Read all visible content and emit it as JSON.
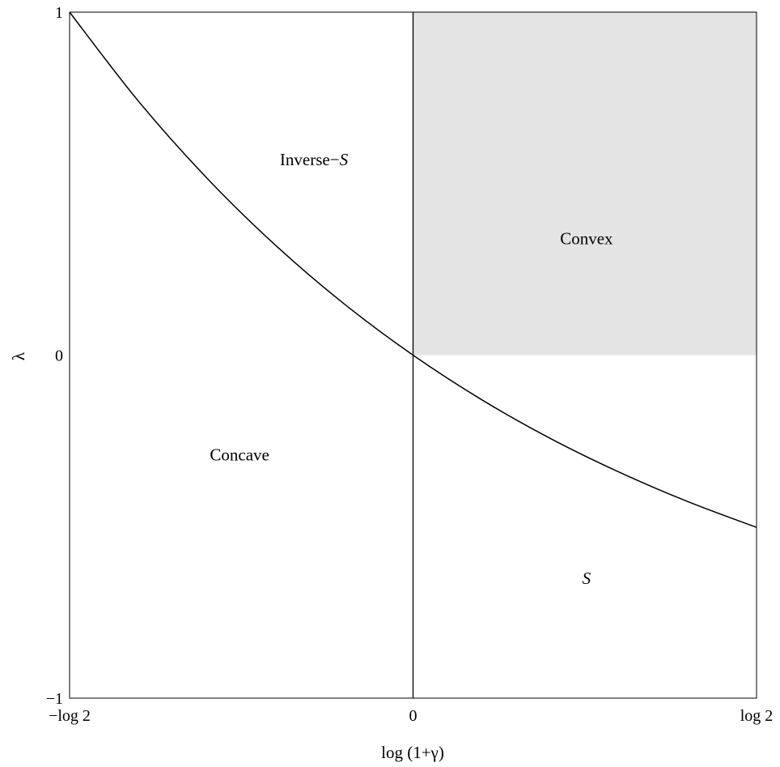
{
  "chart_data": {
    "type": "line",
    "title": "",
    "xlabel": "log (1+γ)",
    "ylabel": "λ",
    "xlim": [
      -0.6931,
      0.6931
    ],
    "ylim": [
      -1,
      1
    ],
    "x_ticks": [
      {
        "value": -0.6931,
        "label": "−log 2"
      },
      {
        "value": 0,
        "label": "0"
      },
      {
        "value": 0.6931,
        "label": "log 2"
      }
    ],
    "y_ticks": [
      {
        "value": -1,
        "label": "−1"
      },
      {
        "value": 0,
        "label": "0"
      },
      {
        "value": 1,
        "label": "1"
      }
    ],
    "grid": false,
    "series": [
      {
        "color": "#000000",
        "x": [
          -0.6931,
          -0.5545,
          -0.4159,
          -0.2773,
          -0.1386,
          0,
          0.1386,
          0.2773,
          0.4159,
          0.5545,
          0.6931
        ],
        "y": [
          1.0,
          0.741,
          0.516,
          0.32,
          0.149,
          0.0,
          -0.13,
          -0.243,
          -0.341,
          -0.427,
          -0.502
        ]
      }
    ],
    "vertical_line": {
      "x": 0,
      "y_range": [
        -1,
        1
      ],
      "color": "#000000"
    },
    "shaded_region": {
      "x_range": [
        0,
        0.6931
      ],
      "y_range": [
        0,
        1
      ],
      "color": "#e4e4e4"
    },
    "region_labels": [
      {
        "name": "inverse-s",
        "text_main": "Inverse−",
        "text_italic": "S",
        "x": -0.2,
        "y": 0.57
      },
      {
        "name": "convex",
        "text_main": "Convex",
        "text_italic": "",
        "x": 0.35,
        "y": 0.34
      },
      {
        "name": "concave",
        "text_main": "Concave",
        "text_italic": "",
        "x": -0.35,
        "y": -0.29
      },
      {
        "name": "s",
        "text_main": "",
        "text_italic": "S",
        "x": 0.35,
        "y": -0.65
      }
    ]
  }
}
